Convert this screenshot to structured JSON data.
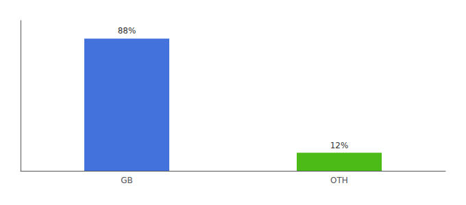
{
  "chart_data": {
    "type": "bar",
    "categories": [
      "GB",
      "OTH"
    ],
    "values": [
      88,
      12
    ],
    "value_labels": [
      "88%",
      "12%"
    ],
    "colors": [
      "#4472DD",
      "#4CBB17"
    ],
    "data_labels": true,
    "ylim": [
      0,
      100
    ],
    "tick_labels": "x",
    "grid": false
  }
}
